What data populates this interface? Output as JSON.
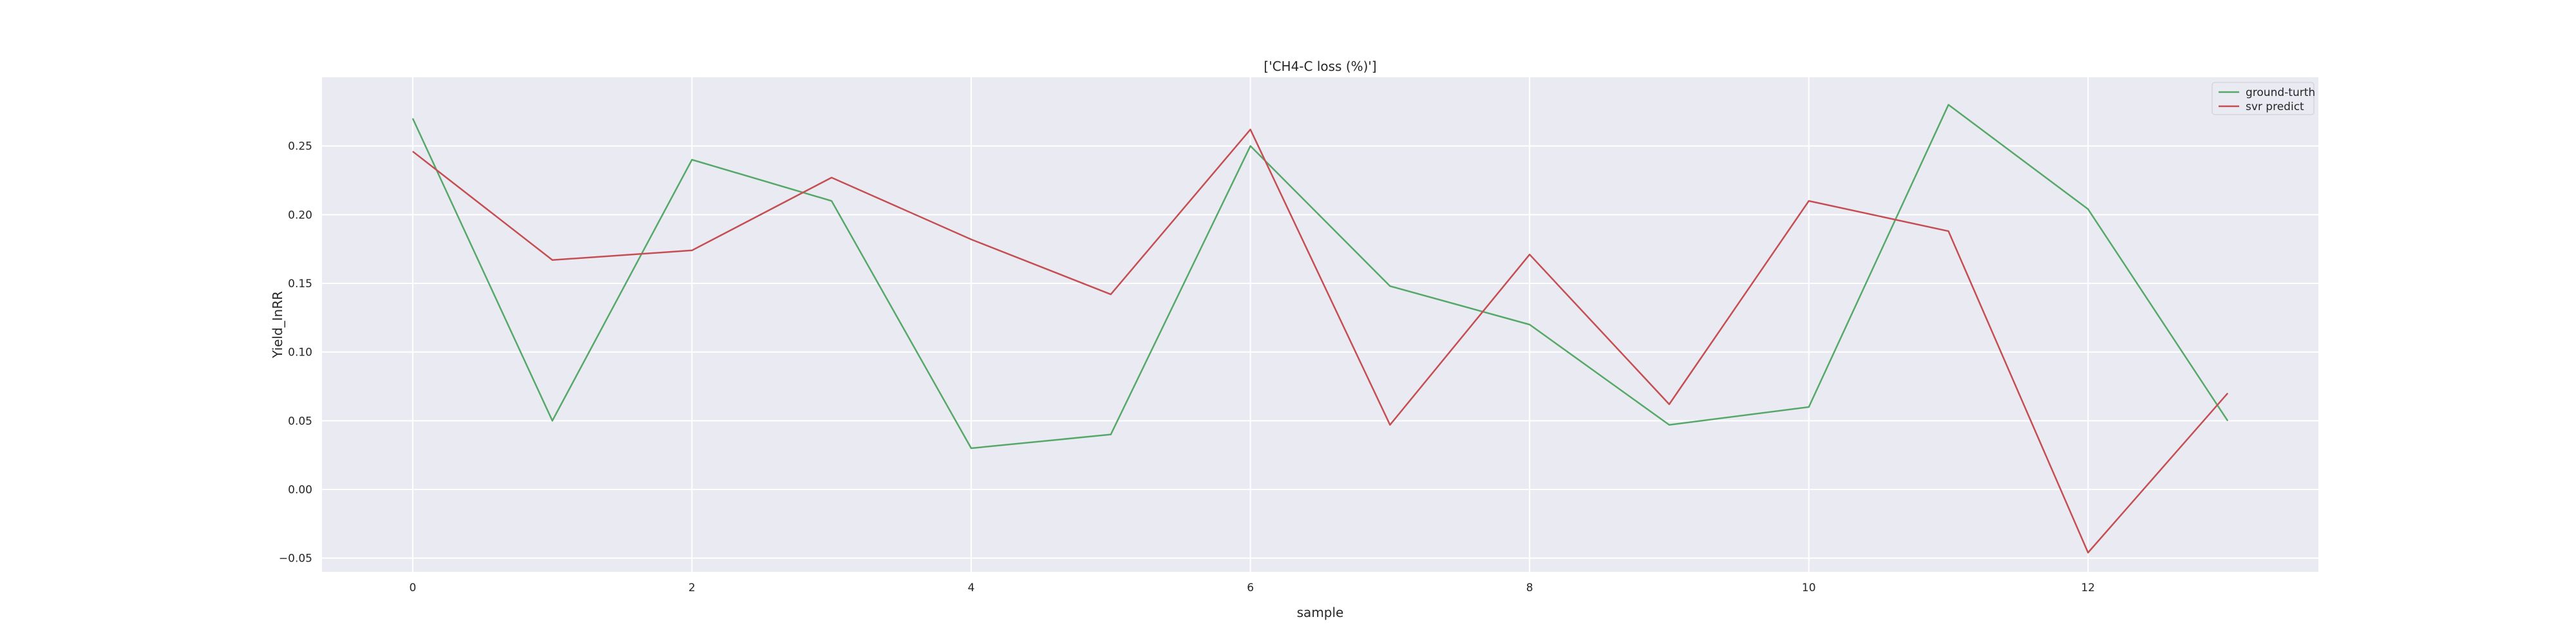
{
  "chart_data": {
    "type": "line",
    "title": "['CH4-C loss (%)']",
    "xlabel": "sample",
    "ylabel": "Yield_InRR",
    "x": [
      0,
      1,
      2,
      3,
      4,
      5,
      6,
      7,
      8,
      9,
      10,
      11,
      12,
      13
    ],
    "xlim": [
      -0.65,
      13.65
    ],
    "ylim": [
      -0.06,
      0.3
    ],
    "xticks": [
      0,
      2,
      4,
      6,
      8,
      10,
      12
    ],
    "yticks": [
      -0.05,
      0.0,
      0.05,
      0.1,
      0.15,
      0.2,
      0.25
    ],
    "xtick_labels": [
      "0",
      "2",
      "4",
      "6",
      "8",
      "10",
      "12"
    ],
    "ytick_labels": [
      "−0.05",
      "0.00",
      "0.05",
      "0.10",
      "0.15",
      "0.20",
      "0.25"
    ],
    "grid": true,
    "legend_position": "top-right",
    "series": [
      {
        "name": "ground-turth",
        "color": "#55a868",
        "values": [
          0.27,
          0.05,
          0.24,
          0.21,
          0.03,
          0.04,
          0.25,
          0.148,
          0.12,
          0.047,
          0.06,
          0.28,
          0.204,
          0.05
        ]
      },
      {
        "name": "svr predict",
        "color": "#c44e52",
        "values": [
          0.246,
          0.167,
          0.174,
          0.227,
          0.182,
          0.142,
          0.262,
          0.047,
          0.171,
          0.062,
          0.21,
          0.188,
          -0.046,
          0.07
        ]
      }
    ],
    "colors": {
      "plot_background": "#eaeaf2",
      "grid": "#ffffff",
      "text": "#262626"
    }
  }
}
